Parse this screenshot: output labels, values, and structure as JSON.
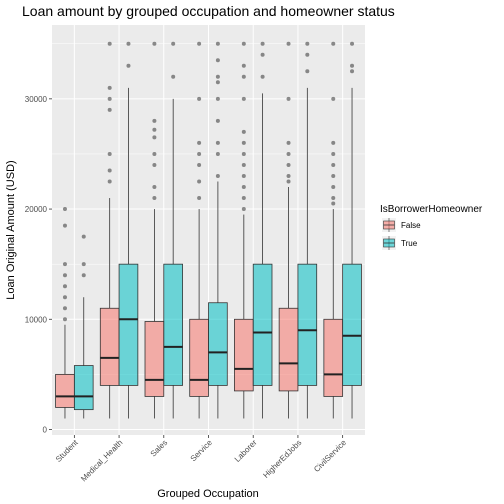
{
  "chart_data": {
    "type": "box",
    "title": "Loan amount by grouped occupation and homeowner status",
    "xlabel": "Grouped Occupation",
    "ylabel": "Loan Original Amount (USD)",
    "ylim": [
      -500,
      36700
    ],
    "yticks": [
      0,
      10000,
      20000,
      30000
    ],
    "grid": true,
    "legend": {
      "title": "IsBorrowerHomeowner",
      "position": "right",
      "entries": [
        {
          "label": "False",
          "color": "#F8766D"
        },
        {
          "label": "True",
          "color": "#00BFC4"
        }
      ]
    },
    "categories": [
      "Student",
      "Medical_Health",
      "Sales",
      "Service",
      "Laborer",
      "HigherEdJobs",
      "CivilService"
    ],
    "series": [
      {
        "name": "False",
        "color": "#F8766D",
        "boxes": [
          {
            "min": 1000,
            "q1": 2000,
            "median": 3000,
            "q3": 5000,
            "max": 9500,
            "outliers": [
              10000,
              11000,
              12000,
              13000,
              14000,
              15000,
              18500,
              20000
            ]
          },
          {
            "min": 1000,
            "q1": 4000,
            "median": 6500,
            "q3": 11000,
            "max": 21000,
            "outliers": [
              22500,
              23500,
              25000,
              29000,
              30000,
              31000,
              35000
            ]
          },
          {
            "min": 1000,
            "q1": 3000,
            "median": 4500,
            "q3": 9800,
            "max": 20000,
            "outliers": [
              21000,
              22000,
              24000,
              25000,
              26500,
              27200,
              28000,
              35000
            ]
          },
          {
            "min": 1000,
            "q1": 3000,
            "median": 4500,
            "q3": 10000,
            "max": 20000,
            "outliers": [
              21000,
              22500,
              24000,
              25000,
              26000,
              30000,
              35000
            ]
          },
          {
            "min": 1000,
            "q1": 3500,
            "median": 5500,
            "q3": 10000,
            "max": 19500,
            "outliers": [
              20000,
              21000,
              22000,
              23000,
              24000,
              25000,
              26000,
              27000,
              30000,
              32000,
              33000,
              35000
            ]
          },
          {
            "min": 1000,
            "q1": 3500,
            "median": 6000,
            "q3": 11000,
            "max": 22000,
            "outliers": [
              22500,
              23000,
              24000,
              25000,
              26000,
              30000,
              35000
            ]
          },
          {
            "min": 1000,
            "q1": 3000,
            "median": 5000,
            "q3": 10000,
            "max": 20000,
            "outliers": [
              20500,
              21000,
              22000,
              23000,
              24000,
              25000,
              26000,
              30000,
              35000
            ]
          }
        ]
      },
      {
        "name": "True",
        "color": "#00BFC4",
        "boxes": [
          {
            "min": 1000,
            "q1": 1800,
            "median": 3000,
            "q3": 5800,
            "max": 12000,
            "outliers": [
              14000,
              15000,
              17500
            ]
          },
          {
            "min": 1000,
            "q1": 4000,
            "median": 10000,
            "q3": 15000,
            "max": 31000,
            "outliers": [
              33000,
              35000
            ]
          },
          {
            "min": 1000,
            "q1": 4000,
            "median": 7500,
            "q3": 15000,
            "max": 30000,
            "outliers": [
              32000,
              35000
            ]
          },
          {
            "min": 1000,
            "q1": 4000,
            "median": 7000,
            "q3": 11500,
            "max": 22500,
            "outliers": [
              23000,
              25000,
              26000,
              28000,
              30000,
              31500,
              32000,
              33500,
              35000
            ]
          },
          {
            "min": 1000,
            "q1": 4000,
            "median": 8800,
            "q3": 15000,
            "max": 30500,
            "outliers": [
              32000,
              34000,
              35000
            ]
          },
          {
            "min": 1000,
            "q1": 4000,
            "median": 9000,
            "q3": 15000,
            "max": 31000,
            "outliers": [
              32500,
              34000,
              35000
            ]
          },
          {
            "min": 1000,
            "q1": 4000,
            "median": 8500,
            "q3": 15000,
            "max": 31000,
            "outliers": [
              32500,
              33000,
              35000
            ]
          }
        ]
      }
    ]
  }
}
